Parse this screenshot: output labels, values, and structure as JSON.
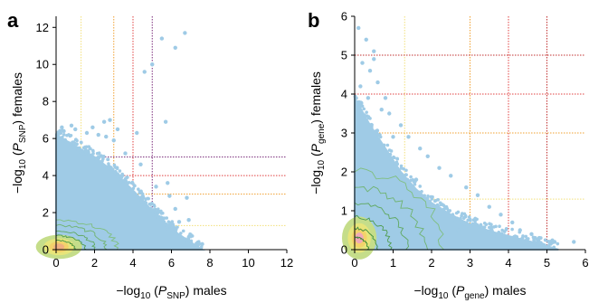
{
  "chart_data": [
    {
      "type": "scatter",
      "panel_label": "a",
      "xlabel": "−log10 (PSNP) males",
      "xlabel_parts": {
        "prefix": "−log",
        "sub1": "10",
        "open": " (",
        "var": "P",
        "sub2": "SNP",
        "close": ") males"
      },
      "ylabel": "−log10 (PSNP) females",
      "ylabel_parts": {
        "prefix": "−log",
        "sub1": "10",
        "open": " (",
        "var": "P",
        "sub2": "SNP",
        "close": ") females"
      },
      "xlim": [
        0,
        12
      ],
      "ylim": [
        0,
        12.6
      ],
      "xticks": [
        0,
        2,
        4,
        6,
        8,
        10,
        12
      ],
      "yticks": [
        0,
        2,
        4,
        6,
        8,
        10,
        12
      ],
      "threshold_lines": [
        {
          "value": 1.3,
          "color": "#f2e07a"
        },
        {
          "value": 3,
          "color": "#f0a030"
        },
        {
          "value": 4,
          "color": "#e04040"
        },
        {
          "value": 5,
          "color": "#7a2a7a"
        }
      ],
      "outlier_points": [
        [
          6.7,
          11.7
        ],
        [
          6.2,
          10.9
        ],
        [
          5.5,
          11.4
        ],
        [
          5.0,
          10.0
        ],
        [
          4.6,
          9.6
        ],
        [
          5.7,
          6.9
        ],
        [
          4.2,
          6.3
        ],
        [
          3.2,
          6.5
        ],
        [
          2.8,
          7.0
        ],
        [
          2.5,
          6.9
        ],
        [
          1.6,
          6.3
        ],
        [
          0.3,
          6.6
        ],
        [
          0.4,
          6.4
        ],
        [
          5.8,
          3.6
        ],
        [
          6.8,
          2.8
        ],
        [
          7.6,
          0.3
        ],
        [
          6.2,
          2.2
        ],
        [
          3.0,
          5.9
        ],
        [
          2.6,
          6.1
        ],
        [
          1.0,
          6.5
        ],
        [
          0.8,
          6.7
        ],
        [
          3.6,
          5.2
        ],
        [
          4.4,
          4.6
        ],
        [
          5.2,
          3.4
        ],
        [
          6.4,
          1.5
        ],
        [
          7.0,
          0.8
        ],
        [
          6.9,
          1.6
        ],
        [
          5.9,
          2.9
        ],
        [
          2.2,
          6.2
        ],
        [
          1.9,
          6.6
        ]
      ],
      "bulk_envelope": [
        [
          0,
          6.2
        ],
        [
          1.0,
          5.6
        ],
        [
          2.0,
          5.0
        ],
        [
          3.0,
          4.2
        ],
        [
          4.0,
          3.2
        ],
        [
          5.0,
          2.1
        ],
        [
          6.0,
          1.1
        ],
        [
          7.0,
          0.4
        ],
        [
          7.6,
          0.0
        ]
      ],
      "density_contours": [
        {
          "rx": 3.2,
          "ry": 1.6,
          "color": "#7fbf7f"
        },
        {
          "rx": 2.6,
          "ry": 1.3,
          "color": "#6fb36f"
        },
        {
          "rx": 2.0,
          "ry": 1.0,
          "color": "#5fa85f"
        },
        {
          "rx": 1.5,
          "ry": 0.75,
          "color": "#4f9c4f"
        },
        {
          "rx": 1.0,
          "ry": 0.5,
          "color": "#3f8f3f"
        }
      ],
      "density_fill": [
        {
          "rx": 1.2,
          "ry": 0.65,
          "color": "#c5dd8a"
        },
        {
          "rx": 0.8,
          "ry": 0.45,
          "color": "#e7e57a"
        },
        {
          "rx": 0.5,
          "ry": 0.3,
          "color": "#f3d26a"
        },
        {
          "rx": 0.28,
          "ry": 0.18,
          "color": "#f0b080"
        }
      ]
    },
    {
      "type": "scatter",
      "panel_label": "b",
      "xlabel": "−log10 (Pgene) males",
      "xlabel_parts": {
        "prefix": "−log",
        "sub1": "10",
        "open": " (",
        "var": "P",
        "sub2": "gene",
        "close": ") males"
      },
      "ylabel": "−log10 (Pgene) females",
      "ylabel_parts": {
        "prefix": "−log",
        "sub1": "10",
        "open": " (",
        "var": "P",
        "sub2": "gene",
        "close": ") females"
      },
      "xlim": [
        0,
        6
      ],
      "ylim": [
        0,
        6
      ],
      "xticks": [
        0,
        1,
        2,
        3,
        4,
        5,
        6
      ],
      "yticks": [
        0,
        1,
        2,
        3,
        4,
        5,
        6
      ],
      "threshold_lines": [
        {
          "value": 1.3,
          "color": "#f2e07a"
        },
        {
          "value": 3,
          "color": "#f0a030"
        },
        {
          "value": 4,
          "color": "#e04040"
        },
        {
          "value": 5,
          "color": "#c03030"
        }
      ],
      "outlier_points": [
        [
          0.1,
          5.7
        ],
        [
          0.3,
          5.4
        ],
        [
          0.5,
          4.9
        ],
        [
          0.4,
          4.6
        ],
        [
          0.6,
          4.3
        ],
        [
          0.2,
          4.8
        ],
        [
          0.8,
          3.9
        ],
        [
          0.9,
          3.5
        ],
        [
          1.4,
          2.9
        ],
        [
          1.7,
          2.6
        ],
        [
          1.9,
          2.4
        ],
        [
          2.2,
          2.1
        ],
        [
          2.5,
          1.9
        ],
        [
          2.9,
          1.6
        ],
        [
          3.2,
          1.4
        ],
        [
          3.5,
          1.1
        ],
        [
          3.8,
          0.9
        ],
        [
          4.1,
          0.7
        ],
        [
          4.3,
          0.5
        ],
        [
          4.8,
          0.3
        ],
        [
          5.2,
          0.2
        ],
        [
          5.7,
          0.2
        ],
        [
          4.6,
          0.4
        ],
        [
          3.0,
          0.2
        ],
        [
          2.7,
          0.5
        ],
        [
          1.2,
          3.2
        ],
        [
          0.7,
          3.6
        ],
        [
          1.0,
          2.9
        ],
        [
          0.35,
          3.9
        ],
        [
          0.15,
          4.2
        ],
        [
          3.6,
          0.3
        ],
        [
          4.0,
          0.3
        ],
        [
          2.2,
          0.9
        ],
        [
          1.6,
          1.8
        ],
        [
          0.5,
          5.1
        ]
      ],
      "bulk_envelope": [
        [
          0,
          3.9
        ],
        [
          0.4,
          3.2
        ],
        [
          0.8,
          2.6
        ],
        [
          1.2,
          2.0
        ],
        [
          1.6,
          1.55
        ],
        [
          2.0,
          1.2
        ],
        [
          2.5,
          0.9
        ],
        [
          3.0,
          0.65
        ],
        [
          3.6,
          0.45
        ],
        [
          4.2,
          0.3
        ],
        [
          4.8,
          0.15
        ],
        [
          5.3,
          0.0
        ]
      ],
      "density_contours": [
        {
          "rx": 2.3,
          "ry": 2.0,
          "color": "#7fbf7f"
        },
        {
          "rx": 1.8,
          "ry": 1.6,
          "color": "#6fb36f"
        },
        {
          "rx": 1.35,
          "ry": 1.2,
          "color": "#5fa85f"
        },
        {
          "rx": 0.95,
          "ry": 0.85,
          "color": "#4f9c4f"
        },
        {
          "rx": 0.6,
          "ry": 0.55,
          "color": "#3f8f3f"
        },
        {
          "rx": 0.35,
          "ry": 0.32,
          "color": "#2f832f"
        }
      ],
      "density_fill": [
        {
          "rx": 0.45,
          "ry": 0.55,
          "color": "#c5dd8a"
        },
        {
          "rx": 0.3,
          "ry": 0.38,
          "color": "#e7e57a"
        },
        {
          "rx": 0.2,
          "ry": 0.25,
          "color": "#f3d26a"
        },
        {
          "rx": 0.11,
          "ry": 0.14,
          "color": "#f0a8b8"
        }
      ]
    }
  ],
  "colors": {
    "points": "#9fcbe6",
    "axis": "#000000"
  }
}
